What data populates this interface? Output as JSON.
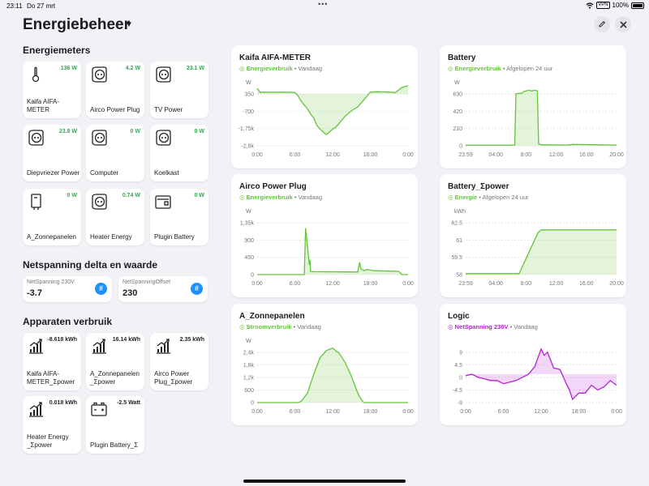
{
  "status": {
    "time": "23:11",
    "date": "Do 27 mrt",
    "vpn": "VPN",
    "battery": "100%"
  },
  "header": {
    "title": "Energiebeheer"
  },
  "sections": {
    "meters": "Energiemeters",
    "netspanning": "Netspanning delta en waarde",
    "apparaten": "Apparaten verbruik"
  },
  "meters": [
    {
      "name": "Kaifa AIFA-METER",
      "value": "136 W",
      "icon": "meter-icon"
    },
    {
      "name": "Airco Power Plug",
      "value": "4.2 W",
      "icon": "plug-icon"
    },
    {
      "name": "TV Power",
      "value": "23.1 W",
      "icon": "plug-icon"
    },
    {
      "name": "Diepvriezer Power",
      "value": "23.8 W",
      "icon": "plug-icon"
    },
    {
      "name": "Computer",
      "value": "0 W",
      "icon": "plug-icon"
    },
    {
      "name": "Koelkast",
      "value": "0 W",
      "icon": "plug-icon"
    },
    {
      "name": "A_Zonnepanelen",
      "value": "0 W",
      "icon": "inverter-icon"
    },
    {
      "name": "Heater Energy",
      "value": "0.74 W",
      "icon": "plug-icon"
    },
    {
      "name": "Plugin Battery",
      "value": "0 W",
      "icon": "battery-box-icon"
    }
  ],
  "netspanning": [
    {
      "label": "NetSpanning 230V",
      "value": "-3.7"
    },
    {
      "label": "NetSpanningOffset",
      "value": "230"
    }
  ],
  "apparaten": [
    {
      "name": "Kaifa AIFA-METER_Σpower",
      "value": "-8.618 kWh",
      "icon": "energy-chart-icon"
    },
    {
      "name": "A_Zonnepanelen _Σpower",
      "value": "16.14 kWh",
      "icon": "energy-chart-icon"
    },
    {
      "name": "Airco Power Plug_Σpower",
      "value": "2.35 kWh",
      "icon": "energy-chart-icon"
    },
    {
      "name": "Heater Energy _Σpower",
      "value": "0.018 kWh",
      "icon": "energy-chart-icon"
    },
    {
      "name": "Plugin Battery_Σ",
      "value": "-2.5 Watt",
      "icon": "car-battery-icon"
    }
  ],
  "colors": {
    "green": "#63c43a",
    "purple": "#b620d6",
    "accent": "#1e90ff",
    "valuegreen": "#2eaa52"
  },
  "chart_data": [
    {
      "type": "area",
      "title": "Kaifa AIFA-METER",
      "entity": "Energieverbruik",
      "period": "Vandaag",
      "ylabel": "W",
      "yticks": [
        "350",
        "-700",
        "-1,75k",
        "-2,8k"
      ],
      "xticks": [
        "0:00",
        "6:00",
        "12:00",
        "18:00",
        "0:00"
      ],
      "ylim": [
        -2800,
        350
      ],
      "xlim": [
        0,
        24
      ],
      "color": "#63c43a",
      "x": [
        0,
        0.5,
        1,
        2,
        3,
        4,
        5,
        6,
        6.5,
        7,
        7.5,
        8,
        8.5,
        9,
        9.5,
        10,
        10.5,
        11,
        11.5,
        12,
        12.5,
        13,
        13.5,
        14,
        15,
        16,
        17,
        18,
        19,
        20,
        21,
        22,
        23,
        24
      ],
      "y": [
        300,
        80,
        100,
        90,
        90,
        100,
        90,
        80,
        -100,
        -400,
        -600,
        -800,
        -1100,
        -1300,
        -1700,
        -1900,
        -2050,
        -2200,
        -2050,
        -1900,
        -1800,
        -1600,
        -1400,
        -1200,
        -900,
        -700,
        -300,
        100,
        120,
        110,
        100,
        80,
        350,
        450
      ]
    },
    {
      "type": "area",
      "title": "Battery",
      "entity": "Energieverbruik",
      "period": "Afgelopen 24 uur",
      "ylabel": "W",
      "yticks": [
        "630",
        "420",
        "210",
        "0"
      ],
      "xticks": [
        "23:59",
        "04:00",
        "8:00",
        "12:00",
        "16:00",
        "20:00"
      ],
      "ylim": [
        0,
        840
      ],
      "xlim": [
        0,
        24
      ],
      "color": "#63c43a",
      "x": [
        0,
        7,
        7.8,
        8,
        9,
        9.2,
        10,
        10.5,
        11,
        11.4,
        11.6,
        12,
        16,
        17,
        24
      ],
      "y": [
        10,
        10,
        10,
        750,
        760,
        780,
        800,
        790,
        800,
        790,
        30,
        15,
        10,
        20,
        10
      ]
    },
    {
      "type": "area",
      "title": "Airco Power Plug",
      "entity": "Energieverbruik",
      "period": "Vandaag",
      "ylabel": "W",
      "yticks": [
        "1,35k",
        "900",
        "450",
        "0"
      ],
      "xticks": [
        "0:00",
        "6:00",
        "12:00",
        "18:00",
        "0:00"
      ],
      "ylim": [
        0,
        1800
      ],
      "xlim": [
        0,
        24
      ],
      "color": "#63c43a",
      "x": [
        0,
        7,
        7.5,
        7.7,
        8.3,
        8.4,
        8.5,
        9,
        16,
        16.3,
        16.5,
        17,
        17.5,
        18.5,
        22.5,
        23,
        24
      ],
      "y": [
        0,
        0,
        0,
        1440,
        300,
        450,
        100,
        90,
        80,
        380,
        180,
        120,
        160,
        120,
        100,
        0,
        0
      ]
    },
    {
      "type": "area",
      "title": "Battery_Σpower",
      "entity": "Energie",
      "period": "Afgelopen 24 uur",
      "ylabel": "kWh",
      "yticks": [
        "62.5",
        "61",
        "59.5",
        "58"
      ],
      "xticks": [
        "23:59",
        "04:00",
        "8:00",
        "12:00",
        "16:00",
        "20:00"
      ],
      "ylim": [
        58,
        64
      ],
      "xlim": [
        0,
        24
      ],
      "color": "#63c43a",
      "x": [
        0,
        8.5,
        11.5,
        12,
        24
      ],
      "y": [
        58.1,
        58.1,
        62.3,
        62.6,
        62.6
      ]
    },
    {
      "type": "area",
      "title": "A_Zonnepanelen",
      "entity": "Stroomverbruik",
      "period": "Vandaag",
      "ylabel": "W",
      "yticks": [
        "2,4k",
        "1,8k",
        "1,2k",
        "600",
        "0"
      ],
      "xticks": [
        "0:00",
        "6:00",
        "12:00",
        "18:00",
        "0:00"
      ],
      "ylim": [
        0,
        2400
      ],
      "xlim": [
        0,
        24
      ],
      "color": "#63c43a",
      "x": [
        0,
        6.5,
        7,
        8,
        9,
        10,
        11,
        12,
        13,
        14,
        15,
        16,
        16.5,
        17,
        24
      ],
      "y": [
        0,
        0,
        50,
        400,
        1200,
        1900,
        2200,
        2300,
        2100,
        1700,
        1100,
        400,
        150,
        0,
        0
      ]
    },
    {
      "type": "line",
      "title": "Logic",
      "entity": "NetSpanning 230V",
      "period": "Vandaag",
      "ylabel": "",
      "yticks": [
        "9",
        "4.5",
        "0",
        "-4.5",
        "-9"
      ],
      "xticks": [
        "0:00",
        "6:00",
        "12:00",
        "18:00",
        "0:00"
      ],
      "ylim": [
        -9,
        9
      ],
      "xlim": [
        0,
        24
      ],
      "color": "#b620d6",
      "x": [
        0,
        1,
        2,
        3,
        4,
        5,
        6,
        7,
        8,
        9,
        10,
        11,
        12,
        12.5,
        13,
        14,
        15,
        16,
        16.5,
        17,
        18,
        19,
        20,
        21,
        22,
        23,
        24
      ],
      "y": [
        -0.5,
        0,
        -1,
        -1.5,
        -2,
        -2,
        -3,
        -2.5,
        -2,
        -1,
        0,
        2.5,
        8,
        6,
        7,
        2,
        1.5,
        -3,
        -5,
        -8,
        -6,
        -6,
        -3.5,
        -5,
        -4,
        -2,
        -3.5
      ]
    }
  ]
}
